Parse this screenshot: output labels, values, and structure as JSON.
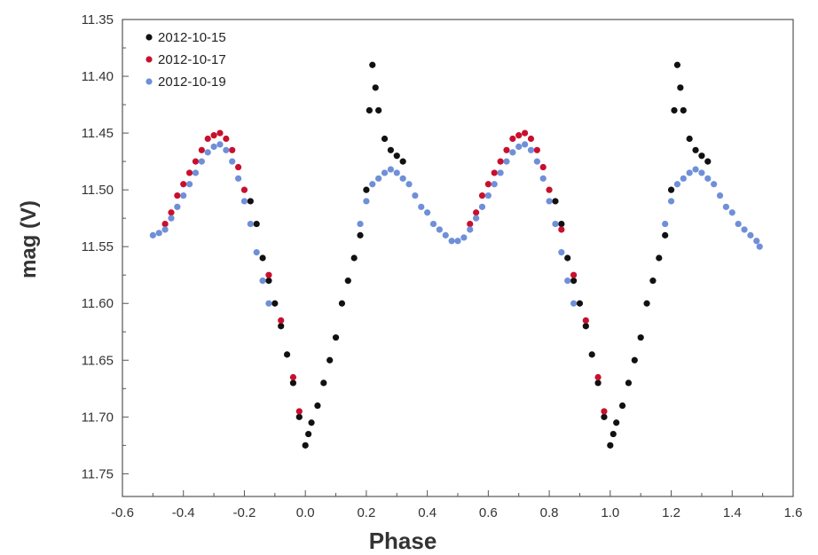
{
  "chart_data": {
    "type": "scatter",
    "title": "",
    "xlabel": "Phase",
    "ylabel": "mag (V)",
    "xlim": [
      -0.6,
      1.6
    ],
    "ylim": [
      11.77,
      11.35
    ],
    "y_inverted": true,
    "grid": false,
    "legend_position": "top-left",
    "x_ticks": [
      "-0.6",
      "-0.4",
      "-0.2",
      "0.0",
      "0.2",
      "0.4",
      "0.6",
      "0.8",
      "1.0",
      "1.2",
      "1.4",
      "1.6"
    ],
    "y_ticks": [
      "11.35",
      "11.40",
      "11.45",
      "11.50",
      "11.55",
      "11.60",
      "11.65",
      "11.70",
      "11.75"
    ],
    "series": [
      {
        "name": "2012-10-15",
        "color": "#111111",
        "points": [
          [
            -0.18,
            11.51
          ],
          [
            -0.16,
            11.53
          ],
          [
            -0.14,
            11.56
          ],
          [
            -0.12,
            11.58
          ],
          [
            -0.1,
            11.6
          ],
          [
            -0.08,
            11.62
          ],
          [
            -0.06,
            11.645
          ],
          [
            -0.04,
            11.67
          ],
          [
            -0.02,
            11.7
          ],
          [
            0.0,
            11.725
          ],
          [
            0.01,
            11.715
          ],
          [
            0.02,
            11.705
          ],
          [
            0.04,
            11.69
          ],
          [
            0.06,
            11.67
          ],
          [
            0.08,
            11.65
          ],
          [
            0.1,
            11.63
          ],
          [
            0.12,
            11.6
          ],
          [
            0.14,
            11.58
          ],
          [
            0.16,
            11.56
          ],
          [
            0.18,
            11.54
          ],
          [
            0.2,
            11.5
          ],
          [
            0.21,
            11.43
          ],
          [
            0.22,
            11.39
          ],
          [
            0.23,
            11.41
          ],
          [
            0.24,
            11.43
          ],
          [
            0.26,
            11.455
          ],
          [
            0.28,
            11.465
          ],
          [
            0.3,
            11.47
          ],
          [
            0.32,
            11.475
          ],
          [
            0.82,
            11.51
          ],
          [
            0.84,
            11.53
          ],
          [
            0.86,
            11.56
          ],
          [
            0.88,
            11.58
          ],
          [
            0.9,
            11.6
          ],
          [
            0.92,
            11.62
          ],
          [
            0.94,
            11.645
          ],
          [
            0.96,
            11.67
          ],
          [
            0.98,
            11.7
          ],
          [
            1.0,
            11.725
          ],
          [
            1.01,
            11.715
          ],
          [
            1.02,
            11.705
          ],
          [
            1.04,
            11.69
          ],
          [
            1.06,
            11.67
          ],
          [
            1.08,
            11.65
          ],
          [
            1.1,
            11.63
          ],
          [
            1.12,
            11.6
          ],
          [
            1.14,
            11.58
          ],
          [
            1.16,
            11.56
          ],
          [
            1.18,
            11.54
          ],
          [
            1.2,
            11.5
          ],
          [
            1.21,
            11.43
          ],
          [
            1.22,
            11.39
          ],
          [
            1.23,
            11.41
          ],
          [
            1.24,
            11.43
          ],
          [
            1.26,
            11.455
          ],
          [
            1.28,
            11.465
          ],
          [
            1.3,
            11.47
          ],
          [
            1.32,
            11.475
          ]
        ]
      },
      {
        "name": "2012-10-17",
        "color": "#c8102e",
        "points": [
          [
            -0.46,
            11.53
          ],
          [
            -0.44,
            11.52
          ],
          [
            -0.42,
            11.505
          ],
          [
            -0.4,
            11.495
          ],
          [
            -0.38,
            11.485
          ],
          [
            -0.36,
            11.475
          ],
          [
            -0.34,
            11.465
          ],
          [
            -0.32,
            11.455
          ],
          [
            -0.3,
            11.452
          ],
          [
            -0.28,
            11.45
          ],
          [
            -0.26,
            11.455
          ],
          [
            -0.24,
            11.465
          ],
          [
            -0.22,
            11.48
          ],
          [
            -0.2,
            11.5
          ],
          [
            -0.12,
            11.575
          ],
          [
            -0.08,
            11.615
          ],
          [
            -0.04,
            11.665
          ],
          [
            -0.02,
            11.695
          ],
          [
            0.54,
            11.53
          ],
          [
            0.56,
            11.52
          ],
          [
            0.58,
            11.505
          ],
          [
            0.6,
            11.495
          ],
          [
            0.62,
            11.485
          ],
          [
            0.64,
            11.475
          ],
          [
            0.66,
            11.465
          ],
          [
            0.68,
            11.455
          ],
          [
            0.7,
            11.452
          ],
          [
            0.72,
            11.45
          ],
          [
            0.74,
            11.455
          ],
          [
            0.76,
            11.465
          ],
          [
            0.78,
            11.48
          ],
          [
            0.8,
            11.5
          ],
          [
            0.84,
            11.535
          ],
          [
            0.88,
            11.575
          ],
          [
            0.92,
            11.615
          ],
          [
            0.96,
            11.665
          ],
          [
            0.98,
            11.695
          ]
        ]
      },
      {
        "name": "2012-10-19",
        "color": "#6f8fd8",
        "points": [
          [
            -0.5,
            11.54
          ],
          [
            -0.48,
            11.538
          ],
          [
            -0.46,
            11.535
          ],
          [
            -0.44,
            11.525
          ],
          [
            -0.42,
            11.515
          ],
          [
            -0.4,
            11.505
          ],
          [
            -0.38,
            11.495
          ],
          [
            -0.36,
            11.485
          ],
          [
            -0.34,
            11.475
          ],
          [
            -0.32,
            11.467
          ],
          [
            -0.3,
            11.462
          ],
          [
            -0.28,
            11.46
          ],
          [
            -0.26,
            11.465
          ],
          [
            -0.24,
            11.475
          ],
          [
            -0.22,
            11.49
          ],
          [
            -0.2,
            11.51
          ],
          [
            -0.18,
            11.53
          ],
          [
            -0.16,
            11.555
          ],
          [
            -0.14,
            11.58
          ],
          [
            -0.12,
            11.6
          ],
          [
            0.18,
            11.53
          ],
          [
            0.2,
            11.51
          ],
          [
            0.22,
            11.495
          ],
          [
            0.24,
            11.49
          ],
          [
            0.26,
            11.485
          ],
          [
            0.28,
            11.482
          ],
          [
            0.3,
            11.485
          ],
          [
            0.32,
            11.49
          ],
          [
            0.34,
            11.495
          ],
          [
            0.36,
            11.505
          ],
          [
            0.38,
            11.515
          ],
          [
            0.4,
            11.52
          ],
          [
            0.42,
            11.53
          ],
          [
            0.44,
            11.535
          ],
          [
            0.46,
            11.54
          ],
          [
            0.48,
            11.545
          ],
          [
            0.5,
            11.545
          ],
          [
            0.52,
            11.542
          ],
          [
            0.54,
            11.535
          ],
          [
            0.56,
            11.525
          ],
          [
            0.58,
            11.515
          ],
          [
            0.6,
            11.505
          ],
          [
            0.62,
            11.495
          ],
          [
            0.64,
            11.485
          ],
          [
            0.66,
            11.475
          ],
          [
            0.68,
            11.467
          ],
          [
            0.7,
            11.462
          ],
          [
            0.72,
            11.46
          ],
          [
            0.74,
            11.465
          ],
          [
            0.76,
            11.475
          ],
          [
            0.78,
            11.49
          ],
          [
            0.8,
            11.51
          ],
          [
            0.82,
            11.53
          ],
          [
            0.84,
            11.555
          ],
          [
            0.86,
            11.58
          ],
          [
            0.88,
            11.6
          ],
          [
            1.18,
            11.53
          ],
          [
            1.2,
            11.51
          ],
          [
            1.22,
            11.495
          ],
          [
            1.24,
            11.49
          ],
          [
            1.26,
            11.485
          ],
          [
            1.28,
            11.482
          ],
          [
            1.3,
            11.485
          ],
          [
            1.32,
            11.49
          ],
          [
            1.34,
            11.495
          ],
          [
            1.36,
            11.505
          ],
          [
            1.38,
            11.515
          ],
          [
            1.4,
            11.52
          ],
          [
            1.42,
            11.53
          ],
          [
            1.44,
            11.535
          ],
          [
            1.46,
            11.54
          ],
          [
            1.48,
            11.545
          ],
          [
            1.49,
            11.55
          ]
        ]
      }
    ]
  }
}
